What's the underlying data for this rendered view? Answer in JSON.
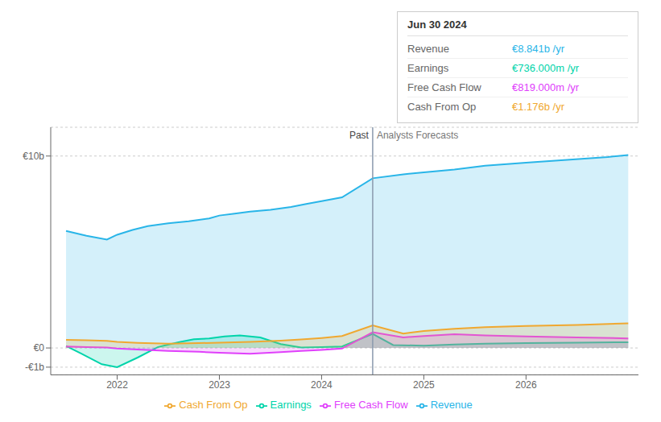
{
  "chart_data": {
    "type": "area",
    "xlim": [
      2021.35,
      2027.1
    ],
    "xticks": [
      2022,
      2023,
      2024,
      2025,
      2026
    ],
    "ylim": [
      -1.4,
      11.5
    ],
    "yticks": [
      {
        "value": -1,
        "label": "-€1b"
      },
      {
        "value": 0,
        "label": "€0"
      },
      {
        "value": 10,
        "label": "€10b"
      }
    ],
    "grid": true,
    "legend": "bottom",
    "series": [
      {
        "name": "Revenue",
        "color": "#29b5e8",
        "x": [
          2021.5,
          2021.7,
          2021.9,
          2022.0,
          2022.15,
          2022.3,
          2022.5,
          2022.7,
          2022.9,
          2023.0,
          2023.15,
          2023.3,
          2023.5,
          2023.7,
          2023.85,
          2024.0,
          2024.2,
          2024.5,
          2024.8,
          2025.0,
          2025.3,
          2025.6,
          2026.0,
          2026.4,
          2026.8,
          2027.0
        ],
        "values": [
          6.1,
          5.85,
          5.65,
          5.9,
          6.15,
          6.35,
          6.5,
          6.6,
          6.75,
          6.9,
          7.0,
          7.1,
          7.2,
          7.35,
          7.5,
          7.65,
          7.85,
          8.841,
          9.05,
          9.15,
          9.3,
          9.5,
          9.65,
          9.8,
          9.95,
          10.05
        ]
      },
      {
        "name": "Earnings",
        "color": "#00d4aa",
        "x": [
          2021.5,
          2021.65,
          2021.85,
          2022.0,
          2022.2,
          2022.4,
          2022.6,
          2022.75,
          2022.9,
          2023.05,
          2023.2,
          2023.4,
          2023.6,
          2023.8,
          2024.0,
          2024.2,
          2024.5,
          2024.7,
          2025.0,
          2025.3,
          2025.6,
          2026.0,
          2026.5,
          2027.0
        ],
        "values": [
          0.1,
          -0.3,
          -0.85,
          -1.0,
          -0.5,
          0.05,
          0.3,
          0.45,
          0.5,
          0.6,
          0.65,
          0.55,
          0.2,
          0.02,
          0.05,
          0.08,
          0.736,
          0.15,
          0.12,
          0.18,
          0.22,
          0.25,
          0.28,
          0.3
        ]
      },
      {
        "name": "Free Cash Flow",
        "color": "#e040fb",
        "x": [
          2021.5,
          2021.7,
          2021.9,
          2022.0,
          2022.2,
          2022.5,
          2022.8,
          2023.0,
          2023.3,
          2023.6,
          2023.8,
          2024.0,
          2024.2,
          2024.5,
          2024.8,
          2025.0,
          2025.3,
          2025.6,
          2026.0,
          2026.5,
          2027.0
        ],
        "values": [
          0.08,
          0.05,
          0.02,
          -0.03,
          -0.08,
          -0.15,
          -0.2,
          -0.25,
          -0.3,
          -0.22,
          -0.15,
          -0.1,
          -0.03,
          0.819,
          0.55,
          0.62,
          0.72,
          0.65,
          0.6,
          0.55,
          0.5
        ]
      },
      {
        "name": "Cash From Op",
        "color": "#f0a830",
        "x": [
          2021.5,
          2021.7,
          2021.9,
          2022.0,
          2022.2,
          2022.5,
          2022.8,
          2023.0,
          2023.3,
          2023.6,
          2023.8,
          2024.0,
          2024.2,
          2024.5,
          2024.8,
          2025.0,
          2025.3,
          2025.6,
          2026.0,
          2026.5,
          2027.0
        ],
        "values": [
          0.42,
          0.4,
          0.37,
          0.32,
          0.27,
          0.22,
          0.25,
          0.28,
          0.32,
          0.38,
          0.44,
          0.52,
          0.62,
          1.176,
          0.75,
          0.88,
          1.0,
          1.08,
          1.15,
          1.2,
          1.28
        ]
      }
    ],
    "annotations": [
      {
        "text": "Past",
        "x": 2024.5
      },
      {
        "text": "Analysts Forecasts",
        "x": 2024.5
      }
    ],
    "tooltip": {
      "title": "Jun 30 2024",
      "rows": [
        {
          "label": "Revenue",
          "value": "€8.841b /yr",
          "color": "#29b5e8"
        },
        {
          "label": "Earnings",
          "value": "€736.000m /yr",
          "color": "#00d4aa"
        },
        {
          "label": "Free Cash Flow",
          "value": "€819.000m /yr",
          "color": "#e040fb"
        },
        {
          "label": "Cash From Op",
          "value": "€1.176b /yr",
          "color": "#f0a830"
        }
      ]
    }
  }
}
